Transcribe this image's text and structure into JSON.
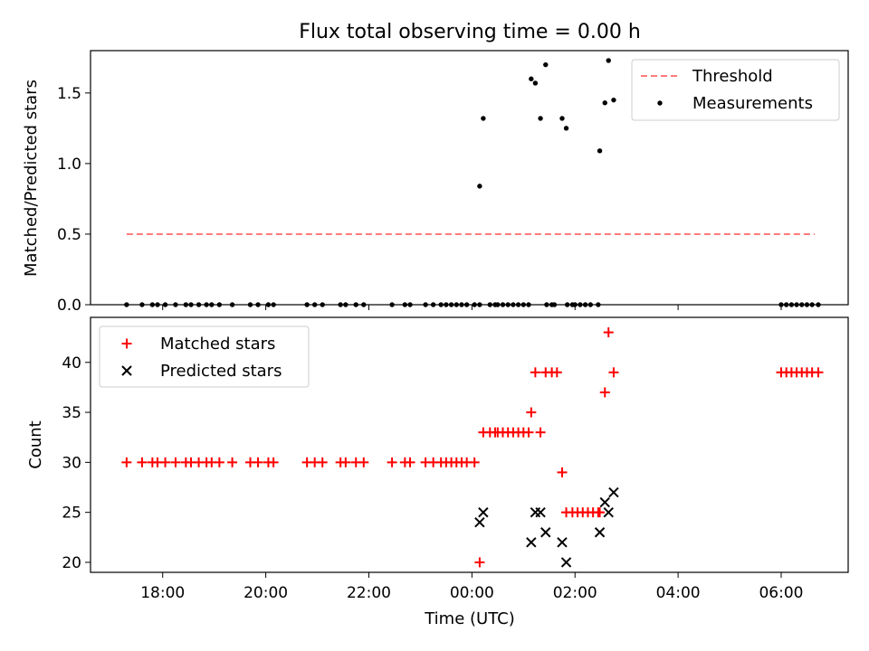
{
  "chart_data": [
    {
      "type": "scatter",
      "title": "Flux total observing time = 0.00 h",
      "xlabel": "",
      "ylabel": "Matched/Predicted stars",
      "xlim": [
        -7.4,
        7.3
      ],
      "ylim": [
        0,
        1.8
      ],
      "yticks": [
        0,
        0.5,
        1.0,
        1.5
      ],
      "ytick_labels": [
        "0.0",
        "0.5",
        "1.0",
        "1.5"
      ],
      "legend_position": "top-right",
      "series": [
        {
          "name": "Threshold",
          "kind": "line",
          "color": "#ff7b7b",
          "dash": true,
          "points": [
            [
              -6.7,
              0.5
            ],
            [
              6.65,
              0.5
            ]
          ]
        },
        {
          "name": "Measurements",
          "kind": "scatter",
          "marker": "dot",
          "color": "#000000",
          "points": [
            [
              -6.7,
              0
            ],
            [
              -6.4,
              0
            ],
            [
              -6.2,
              0
            ],
            [
              -6.1,
              0
            ],
            [
              -5.95,
              0
            ],
            [
              -5.75,
              0
            ],
            [
              -5.55,
              0
            ],
            [
              -5.45,
              0
            ],
            [
              -5.3,
              0
            ],
            [
              -5.15,
              0
            ],
            [
              -5.05,
              0
            ],
            [
              -4.9,
              0
            ],
            [
              -4.65,
              0
            ],
            [
              -4.3,
              0
            ],
            [
              -4.15,
              0
            ],
            [
              -3.95,
              0
            ],
            [
              -3.85,
              0
            ],
            [
              -3.2,
              0
            ],
            [
              -3.05,
              0
            ],
            [
              -2.9,
              0
            ],
            [
              -2.55,
              0
            ],
            [
              -2.45,
              0
            ],
            [
              -2.25,
              0
            ],
            [
              -2.1,
              0
            ],
            [
              -1.55,
              0
            ],
            [
              -1.3,
              0
            ],
            [
              -1.2,
              0
            ],
            [
              -0.9,
              0
            ],
            [
              -0.75,
              0
            ],
            [
              -0.6,
              0
            ],
            [
              -0.5,
              0
            ],
            [
              -0.4,
              0
            ],
            [
              -0.3,
              0
            ],
            [
              -0.2,
              0
            ],
            [
              -0.1,
              0
            ],
            [
              0.05,
              0
            ],
            [
              0.15,
              0
            ],
            [
              0.35,
              0
            ],
            [
              0.45,
              0
            ],
            [
              0.5,
              0
            ],
            [
              0.6,
              0
            ],
            [
              0.7,
              0
            ],
            [
              0.8,
              0
            ],
            [
              0.9,
              0
            ],
            [
              1.0,
              0
            ],
            [
              1.1,
              0
            ],
            [
              1.45,
              0
            ],
            [
              1.55,
              0
            ],
            [
              1.6,
              0
            ],
            [
              1.85,
              0
            ],
            [
              1.95,
              0
            ],
            [
              2.0,
              0
            ],
            [
              2.1,
              0
            ],
            [
              2.2,
              0
            ],
            [
              2.3,
              0
            ],
            [
              2.45,
              0
            ],
            [
              6.0,
              0
            ],
            [
              6.1,
              0
            ],
            [
              6.2,
              0
            ],
            [
              6.3,
              0
            ],
            [
              6.4,
              0
            ],
            [
              6.5,
              0
            ],
            [
              6.6,
              0
            ],
            [
              6.72,
              0
            ],
            [
              0.15,
              0.84
            ],
            [
              0.22,
              1.32
            ],
            [
              1.15,
              1.6
            ],
            [
              1.23,
              1.57
            ],
            [
              1.33,
              1.32
            ],
            [
              1.43,
              1.7
            ],
            [
              1.75,
              1.32
            ],
            [
              1.83,
              1.25
            ],
            [
              2.48,
              1.09
            ],
            [
              2.58,
              1.43
            ],
            [
              2.65,
              1.73
            ],
            [
              2.75,
              1.45
            ]
          ]
        }
      ]
    },
    {
      "type": "scatter",
      "title": "",
      "xlabel": "Time (UTC)",
      "ylabel": "Count",
      "xlim": [
        -7.4,
        7.3
      ],
      "ylim": [
        19,
        44.5
      ],
      "yticks": [
        20,
        25,
        30,
        35,
        40
      ],
      "ytick_labels": [
        "20",
        "25",
        "30",
        "35",
        "40"
      ],
      "xticks": [
        -6,
        -4,
        -2,
        0,
        2,
        4,
        6
      ],
      "xtick_labels": [
        "18:00",
        "20:00",
        "22:00",
        "00:00",
        "02:00",
        "04:00",
        "06:00"
      ],
      "legend_position": "top-left",
      "series": [
        {
          "name": "Matched stars",
          "kind": "scatter",
          "marker": "plus",
          "color": "#ff0000",
          "points": [
            [
              -6.7,
              30
            ],
            [
              -6.4,
              30
            ],
            [
              -6.2,
              30
            ],
            [
              -6.1,
              30
            ],
            [
              -5.95,
              30
            ],
            [
              -5.75,
              30
            ],
            [
              -5.55,
              30
            ],
            [
              -5.45,
              30
            ],
            [
              -5.3,
              30
            ],
            [
              -5.15,
              30
            ],
            [
              -5.05,
              30
            ],
            [
              -4.9,
              30
            ],
            [
              -4.65,
              30
            ],
            [
              -4.3,
              30
            ],
            [
              -4.15,
              30
            ],
            [
              -3.95,
              30
            ],
            [
              -3.85,
              30
            ],
            [
              -3.2,
              30
            ],
            [
              -3.05,
              30
            ],
            [
              -2.9,
              30
            ],
            [
              -2.55,
              30
            ],
            [
              -2.45,
              30
            ],
            [
              -2.25,
              30
            ],
            [
              -2.1,
              30
            ],
            [
              -1.55,
              30
            ],
            [
              -1.3,
              30
            ],
            [
              -1.2,
              30
            ],
            [
              -0.9,
              30
            ],
            [
              -0.75,
              30
            ],
            [
              -0.6,
              30
            ],
            [
              -0.5,
              30
            ],
            [
              -0.4,
              30
            ],
            [
              -0.3,
              30
            ],
            [
              -0.2,
              30
            ],
            [
              -0.1,
              30
            ],
            [
              0.05,
              30
            ],
            [
              0.15,
              20
            ],
            [
              0.22,
              33
            ],
            [
              0.35,
              33
            ],
            [
              0.45,
              33
            ],
            [
              0.5,
              33
            ],
            [
              0.6,
              33
            ],
            [
              0.7,
              33
            ],
            [
              0.8,
              33
            ],
            [
              0.9,
              33
            ],
            [
              1.0,
              33
            ],
            [
              1.1,
              33
            ],
            [
              1.15,
              35
            ],
            [
              1.23,
              39
            ],
            [
              1.33,
              33
            ],
            [
              1.43,
              39
            ],
            [
              1.55,
              39
            ],
            [
              1.65,
              39
            ],
            [
              1.75,
              29
            ],
            [
              1.83,
              25
            ],
            [
              1.95,
              25
            ],
            [
              2.05,
              25
            ],
            [
              2.15,
              25
            ],
            [
              2.25,
              25
            ],
            [
              2.35,
              25
            ],
            [
              2.45,
              25
            ],
            [
              2.48,
              25
            ],
            [
              2.58,
              37
            ],
            [
              2.65,
              43
            ],
            [
              2.75,
              39
            ],
            [
              6.0,
              39
            ],
            [
              6.1,
              39
            ],
            [
              6.2,
              39
            ],
            [
              6.3,
              39
            ],
            [
              6.4,
              39
            ],
            [
              6.5,
              39
            ],
            [
              6.6,
              39
            ],
            [
              6.72,
              39
            ]
          ]
        },
        {
          "name": "Predicted stars",
          "kind": "scatter",
          "marker": "x",
          "color": "#000000",
          "points": [
            [
              0.15,
              24
            ],
            [
              0.22,
              25
            ],
            [
              1.15,
              22
            ],
            [
              1.23,
              25
            ],
            [
              1.33,
              25
            ],
            [
              1.43,
              23
            ],
            [
              1.75,
              22
            ],
            [
              1.83,
              20
            ],
            [
              2.48,
              23
            ],
            [
              2.58,
              26
            ],
            [
              2.65,
              25
            ],
            [
              2.75,
              27
            ]
          ]
        }
      ]
    }
  ]
}
